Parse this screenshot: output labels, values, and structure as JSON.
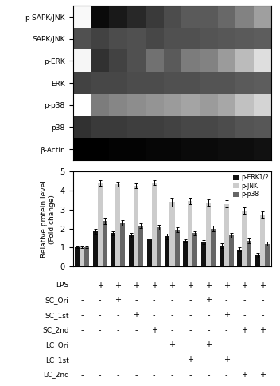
{
  "chart_data": [
    {
      "type": "heatmap",
      "categories": [
        null,
        null,
        null,
        null,
        null,
        null,
        null,
        null,
        null,
        null,
        null
      ],
      "rows": [
        "p-SAPK/JNK",
        "SAPK/JNK",
        "p-ERK",
        "ERK",
        "p-p38",
        "p38",
        "β-Actin"
      ],
      "cells": [
        [
          0.08,
          0.82,
          0.78,
          0.74,
          0.7,
          0.66,
          0.62,
          0.62,
          0.58,
          0.5,
          0.42
        ],
        [
          0.65,
          0.68,
          0.66,
          0.65,
          0.67,
          0.65,
          0.65,
          0.64,
          0.63,
          0.62,
          0.61
        ],
        [
          0.1,
          0.72,
          0.68,
          0.65,
          0.55,
          0.62,
          0.52,
          0.5,
          0.43,
          0.35,
          0.22
        ],
        [
          0.68,
          0.67,
          0.67,
          0.66,
          0.66,
          0.65,
          0.65,
          0.64,
          0.64,
          0.62,
          0.61
        ],
        [
          0.04,
          0.52,
          0.49,
          0.47,
          0.45,
          0.43,
          0.41,
          0.43,
          0.4,
          0.33,
          0.26
        ],
        [
          0.72,
          0.7,
          0.7,
          0.69,
          0.69,
          0.68,
          0.67,
          0.67,
          0.66,
          0.64,
          0.63
        ],
        [
          0.85,
          0.85,
          0.84,
          0.84,
          0.83,
          0.83,
          0.82,
          0.82,
          0.81,
          0.81,
          0.8
        ]
      ],
      "tick_labels": "y",
      "grid": false
    },
    {
      "type": "bar",
      "categories": [
        null,
        null,
        null,
        null,
        null,
        null,
        null,
        null,
        null,
        null,
        null
      ],
      "series": [
        {
          "name": "p-ERK1/2",
          "color": "#111111",
          "values": [
            1.0,
            1.85,
            1.75,
            1.65,
            1.42,
            1.58,
            1.35,
            1.28,
            1.1,
            0.9,
            0.6
          ],
          "errors": [
            0.04,
            0.15,
            0.12,
            0.12,
            0.1,
            0.14,
            0.1,
            0.1,
            0.12,
            0.12,
            0.12
          ]
        },
        {
          "name": "p-JNK",
          "color": "#cccccc",
          "values": [
            1.0,
            4.4,
            4.35,
            4.25,
            4.42,
            3.4,
            3.45,
            3.38,
            3.3,
            2.95,
            2.75
          ],
          "errors": [
            0.04,
            0.15,
            0.12,
            0.12,
            0.14,
            0.22,
            0.18,
            0.18,
            0.18,
            0.18,
            0.16
          ]
        },
        {
          "name": "p-p38",
          "color": "#666666",
          "values": [
            1.0,
            2.4,
            2.28,
            2.15,
            2.05,
            1.95,
            1.75,
            2.0,
            1.65,
            1.35,
            1.2
          ],
          "errors": [
            0.04,
            0.18,
            0.15,
            0.14,
            0.13,
            0.13,
            0.12,
            0.15,
            0.14,
            0.14,
            0.12
          ]
        }
      ],
      "ylabel": "Relative protein level\n(Fold change)",
      "ylim": [
        0,
        5
      ],
      "yticks": [
        0,
        1,
        2,
        3,
        4,
        5
      ],
      "legend": "upper right",
      "grid": false
    },
    {
      "type": "table",
      "row_labels": [
        "LPS",
        "SC_Ori",
        "SC_1st",
        "SC_2nd",
        "LC_Ori",
        "LC_1st",
        "LC_2nd"
      ],
      "cells": [
        [
          "-",
          "+",
          "+",
          "+",
          "+",
          "+",
          "+",
          "+",
          "+",
          "+",
          "+"
        ],
        [
          "-",
          "-",
          "+",
          "-",
          "-",
          "-",
          "-",
          "+",
          "-",
          "-",
          "-"
        ],
        [
          "-",
          "-",
          "-",
          "+",
          "-",
          "-",
          "-",
          "-",
          "+",
          "-",
          "-"
        ],
        [
          "-",
          "-",
          "-",
          "-",
          "+",
          "-",
          "-",
          "-",
          "-",
          "+",
          "+"
        ],
        [
          "-",
          "-",
          "-",
          "-",
          "-",
          "+",
          "-",
          "+",
          "-",
          "-",
          "-"
        ],
        [
          "-",
          "-",
          "-",
          "-",
          "-",
          "-",
          "+",
          "-",
          "+",
          "-",
          "-"
        ],
        [
          "-",
          "-",
          "-",
          "-",
          "-",
          "-",
          "-",
          "-",
          "-",
          "+",
          "+"
        ]
      ]
    }
  ]
}
